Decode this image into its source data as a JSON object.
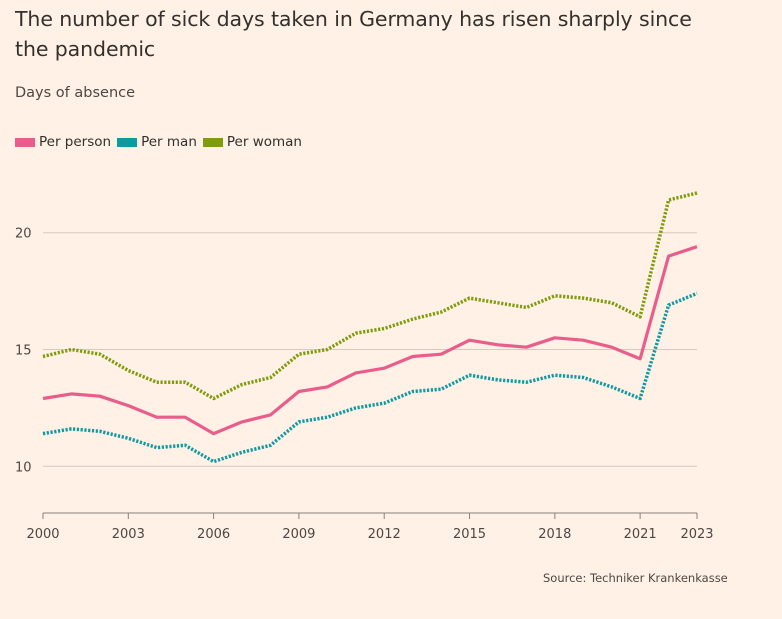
{
  "title": "The number of sick days taken in Germany has risen sharply since the pandemic",
  "subtitle": "Days of absence",
  "source": "Source: Techniker Krankenkasse",
  "colors": {
    "background": "#fff1e5",
    "per_person": "#e95d8c",
    "per_man": "#0f99a3",
    "per_woman": "#7f9b0e",
    "gridline": "#d9c9bc",
    "axis": "#8a817c"
  },
  "chart_data": {
    "type": "line",
    "title": "The number of sick days taken in Germany has risen sharply since the pandemic",
    "subtitle": "Days of absence",
    "xlabel": "",
    "ylabel": "Days of absence",
    "x": [
      2000,
      2001,
      2002,
      2003,
      2004,
      2005,
      2006,
      2007,
      2008,
      2009,
      2010,
      2011,
      2012,
      2013,
      2014,
      2015,
      2016,
      2017,
      2018,
      2019,
      2020,
      2021,
      2022,
      2023
    ],
    "xticks": [
      2000,
      2003,
      2006,
      2009,
      2012,
      2015,
      2018,
      2021,
      2023
    ],
    "xtick_labels": [
      "2000",
      "2003",
      "2006",
      "2009",
      "2012",
      "2015",
      "2018",
      "2021",
      "2023"
    ],
    "yticks": [
      10,
      15,
      20
    ],
    "ytick_labels": [
      "10",
      "15",
      "20"
    ],
    "ylim": [
      8,
      22
    ],
    "xlim": [
      2000,
      2023
    ],
    "grid": true,
    "legend_position": "top-left",
    "series": [
      {
        "name": "Per person",
        "key": "per_person",
        "style": "solid",
        "values": [
          12.9,
          13.1,
          13.0,
          12.6,
          12.1,
          12.1,
          11.4,
          11.9,
          12.2,
          13.2,
          13.4,
          14.0,
          14.2,
          14.7,
          14.8,
          15.4,
          15.2,
          15.1,
          15.5,
          15.4,
          15.1,
          14.6,
          19.0,
          19.4
        ]
      },
      {
        "name": "Per man",
        "key": "per_man",
        "style": "dotted",
        "values": [
          11.4,
          11.6,
          11.5,
          11.2,
          10.8,
          10.9,
          10.2,
          10.6,
          10.9,
          11.9,
          12.1,
          12.5,
          12.7,
          13.2,
          13.3,
          13.9,
          13.7,
          13.6,
          13.9,
          13.8,
          13.4,
          12.9,
          16.9,
          17.4
        ]
      },
      {
        "name": "Per woman",
        "key": "per_woman",
        "style": "dotted",
        "values": [
          14.7,
          15.0,
          14.8,
          14.1,
          13.6,
          13.6,
          12.9,
          13.5,
          13.8,
          14.8,
          15.0,
          15.7,
          15.9,
          16.3,
          16.6,
          17.2,
          17.0,
          16.8,
          17.3,
          17.2,
          17.0,
          16.4,
          21.4,
          21.7
        ]
      }
    ]
  }
}
